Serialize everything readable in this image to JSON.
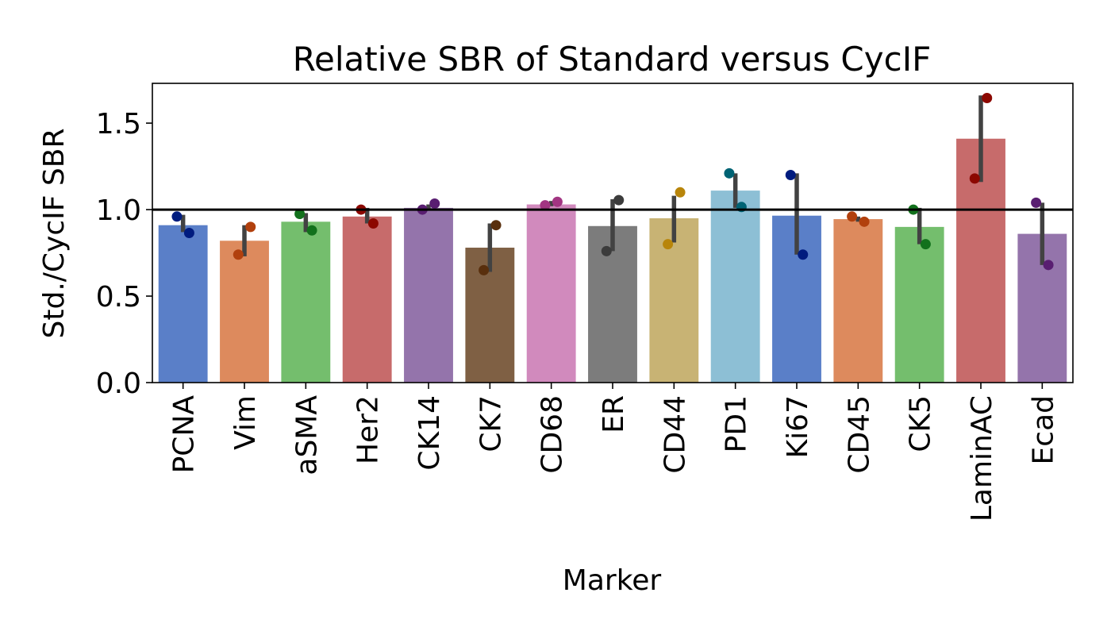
{
  "chart_data": {
    "type": "bar",
    "title": "Relative SBR of Standard versus CycIF",
    "xlabel": "Marker",
    "ylabel": "Std./CycIF SBR",
    "ylim": [
      0,
      1.73
    ],
    "yticks": [
      "0.0",
      "0.5",
      "1.0",
      "1.5"
    ],
    "reference_line": 1.0,
    "grid": false,
    "categories": [
      "PCNA",
      "Vim",
      "aSMA",
      "Her2",
      "CK14",
      "CK7",
      "CD68",
      "ER",
      "CD44",
      "PD1",
      "Ki67",
      "CD45",
      "CK5",
      "LaminAC",
      "Ecad"
    ],
    "values": [
      0.91,
      0.82,
      0.93,
      0.96,
      1.01,
      0.78,
      1.03,
      0.905,
      0.95,
      1.11,
      0.965,
      0.945,
      0.9,
      1.41,
      0.86
    ],
    "error_bars": [
      [
        0.87,
        0.97
      ],
      [
        0.73,
        0.91
      ],
      [
        0.87,
        0.98
      ],
      [
        0.92,
        1.01
      ],
      [
        1.0,
        1.03
      ],
      [
        0.64,
        0.92
      ],
      [
        1.02,
        1.05
      ],
      [
        0.76,
        1.06
      ],
      [
        0.81,
        1.08
      ],
      [
        1.01,
        1.21
      ],
      [
        0.74,
        1.21
      ],
      [
        0.93,
        0.96
      ],
      [
        0.8,
        1.01
      ],
      [
        1.16,
        1.66
      ],
      [
        0.68,
        1.04
      ]
    ],
    "points": [
      [
        0.96,
        0.865
      ],
      [
        0.74,
        0.9
      ],
      [
        0.975,
        0.88
      ],
      [
        1.0,
        0.92
      ],
      [
        1.0,
        1.035
      ],
      [
        0.65,
        0.91
      ],
      [
        1.025,
        1.045
      ],
      [
        0.76,
        1.055
      ],
      [
        0.8,
        1.1
      ],
      [
        1.21,
        1.015
      ],
      [
        1.2,
        0.74
      ],
      [
        0.96,
        0.93
      ],
      [
        1.0,
        0.8
      ],
      [
        1.18,
        1.645
      ],
      [
        1.04,
        0.68
      ]
    ],
    "bar_colors": [
      "#5a7fc8",
      "#dd8a5d",
      "#74be6d",
      "#c76b6b",
      "#9474ab",
      "#7f6044",
      "#d18abd",
      "#7c7c7c",
      "#c8b374",
      "#8dbfd5",
      "#5a7fc8",
      "#dd8a5d",
      "#74be6d",
      "#c76b6b",
      "#9474ab"
    ],
    "point_colors": [
      "#001c7f",
      "#b1400d",
      "#12711c",
      "#8c0800",
      "#591e71",
      "#592f0d",
      "#a23582",
      "#3c3c3c",
      "#b8850a",
      "#006374",
      "#001c7f",
      "#b1400d",
      "#12711c",
      "#8c0800",
      "#591e71"
    ]
  }
}
